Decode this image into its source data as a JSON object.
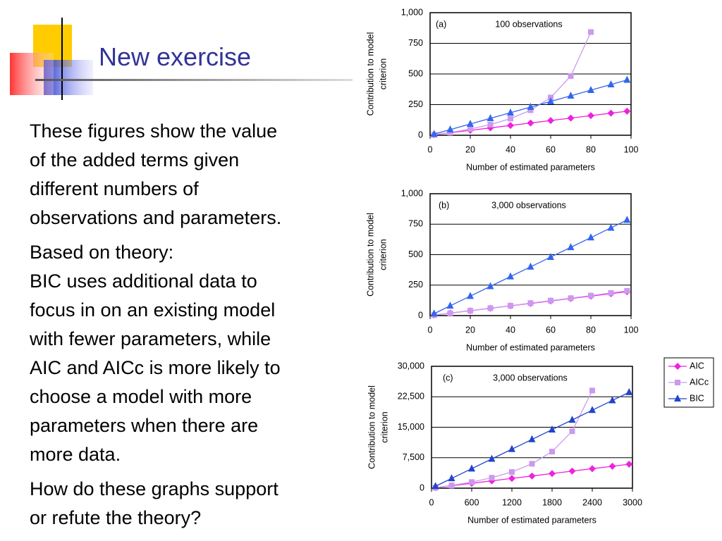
{
  "title": "New exercise",
  "body": [
    [
      "These figures show the value",
      "of the added terms given",
      "different numbers of",
      "observations and parameters."
    ],
    [
      "Based on theory:",
      "BIC uses additional data to",
      "focus in on an existing model",
      "with fewer parameters, while",
      "AIC and AICc is more likely to",
      "choose a model with more",
      "parameters when there are",
      "more data."
    ],
    [
      "How do these graphs support",
      "or refute the theory?"
    ]
  ],
  "chart_data": [
    {
      "type": "line",
      "annotation_label": "(a)",
      "annotation": "100 observations",
      "x_label": "Number of estimated parameters",
      "y_label": [
        "Contribution to model",
        "criterion"
      ],
      "xlim": [
        0,
        100
      ],
      "xticks": [
        0,
        20,
        40,
        60,
        80,
        100
      ],
      "ylim": [
        0,
        1000
      ],
      "yticks": [
        0,
        250,
        500,
        750,
        {
          "value": 1000,
          "label": "1,000"
        }
      ],
      "grid": true,
      "series": [
        {
          "name": "AIC",
          "color": "#ee22dd",
          "marker": "diamond",
          "x": [
            2,
            10,
            20,
            30,
            40,
            50,
            60,
            70,
            80,
            90,
            98
          ],
          "values": [
            4,
            20,
            40,
            60,
            80,
            100,
            120,
            140,
            160,
            180,
            196
          ]
        },
        {
          "name": "AICc",
          "color": "#cc99ee",
          "marker": "square",
          "x": [
            2,
            10,
            20,
            30,
            40,
            50,
            60,
            70,
            80
          ],
          "values": [
            4,
            22,
            51,
            87,
            136,
            204,
            308,
            483,
            842
          ]
        },
        {
          "name": "BIC",
          "color": "#3366ee",
          "marker": "triangle",
          "x": [
            2,
            10,
            20,
            30,
            40,
            50,
            60,
            70,
            80,
            90,
            98
          ],
          "values": [
            9,
            46,
            92,
            138,
            184,
            230,
            276,
            322,
            368,
            414,
            451
          ]
        }
      ]
    },
    {
      "type": "line",
      "annotation_label": "(b)",
      "annotation": "3,000 observations",
      "x_label": "Number of estimated parameters",
      "y_label": [
        "Contribution to model",
        "criterion"
      ],
      "xlim": [
        0,
        100
      ],
      "xticks": [
        0,
        20,
        40,
        60,
        80,
        100
      ],
      "ylim": [
        0,
        1000
      ],
      "yticks": [
        0,
        250,
        500,
        750,
        {
          "value": 1000,
          "label": "1,000"
        }
      ],
      "grid": true,
      "series": [
        {
          "name": "AIC",
          "color": "#ee22dd",
          "marker": "diamond",
          "x": [
            2,
            10,
            20,
            30,
            40,
            50,
            60,
            70,
            80,
            90,
            98
          ],
          "values": [
            4,
            20,
            40,
            60,
            80,
            100,
            120,
            140,
            160,
            180,
            196
          ]
        },
        {
          "name": "AICc",
          "color": "#cc99ee",
          "marker": "square",
          "x": [
            2,
            10,
            20,
            30,
            40,
            50,
            60,
            70,
            80,
            90,
            98
          ],
          "values": [
            4,
            20,
            40,
            61,
            81,
            102,
            123,
            143,
            164,
            186,
            203
          ]
        },
        {
          "name": "BIC",
          "color": "#3366ee",
          "marker": "triangle",
          "x": [
            2,
            10,
            20,
            30,
            40,
            50,
            60,
            70,
            80,
            90,
            98
          ],
          "values": [
            16,
            80,
            160,
            240,
            320,
            400,
            480,
            560,
            640,
            720,
            785
          ]
        }
      ]
    },
    {
      "type": "line",
      "annotation_label": "(c)",
      "annotation": "3,000 observations",
      "x_label": "Number of estimated parameters",
      "y_label": [
        "Contribution to model",
        "criterion"
      ],
      "xlim": [
        0,
        3000
      ],
      "xticks": [
        0,
        600,
        1200,
        1800,
        2400,
        3000
      ],
      "ylim": [
        0,
        30000
      ],
      "yticks": [
        0,
        {
          "value": 7500,
          "label": "7,500"
        },
        {
          "value": 15000,
          "label": "15,000"
        },
        {
          "value": 22500,
          "label": "22,500"
        },
        {
          "value": 30000,
          "label": "30,000"
        }
      ],
      "grid": true,
      "legend": "right",
      "series": [
        {
          "name": "AIC",
          "color": "#ee22dd",
          "marker": "diamond",
          "x": [
            60,
            300,
            600,
            900,
            1200,
            1500,
            1800,
            2100,
            2400,
            2700,
            2950
          ],
          "values": [
            120,
            600,
            1200,
            1800,
            2400,
            3000,
            3600,
            4200,
            4800,
            5400,
            5900
          ]
        },
        {
          "name": "AICc",
          "color": "#cc99ee",
          "marker": "square",
          "x": [
            60,
            300,
            600,
            900,
            1200,
            1500,
            1800,
            2100,
            2400
          ],
          "values": [
            122,
            667,
            1501,
            2573,
            4002,
            6004,
            9007,
            14015,
            24040
          ]
        },
        {
          "name": "BIC",
          "color": "#2244cc",
          "marker": "triangle",
          "x": [
            60,
            300,
            600,
            900,
            1200,
            1500,
            1800,
            2100,
            2400,
            2700,
            2950
          ],
          "values": [
            480,
            2400,
            4800,
            7200,
            9600,
            12000,
            14400,
            16800,
            19200,
            21600,
            23600
          ]
        }
      ]
    }
  ]
}
